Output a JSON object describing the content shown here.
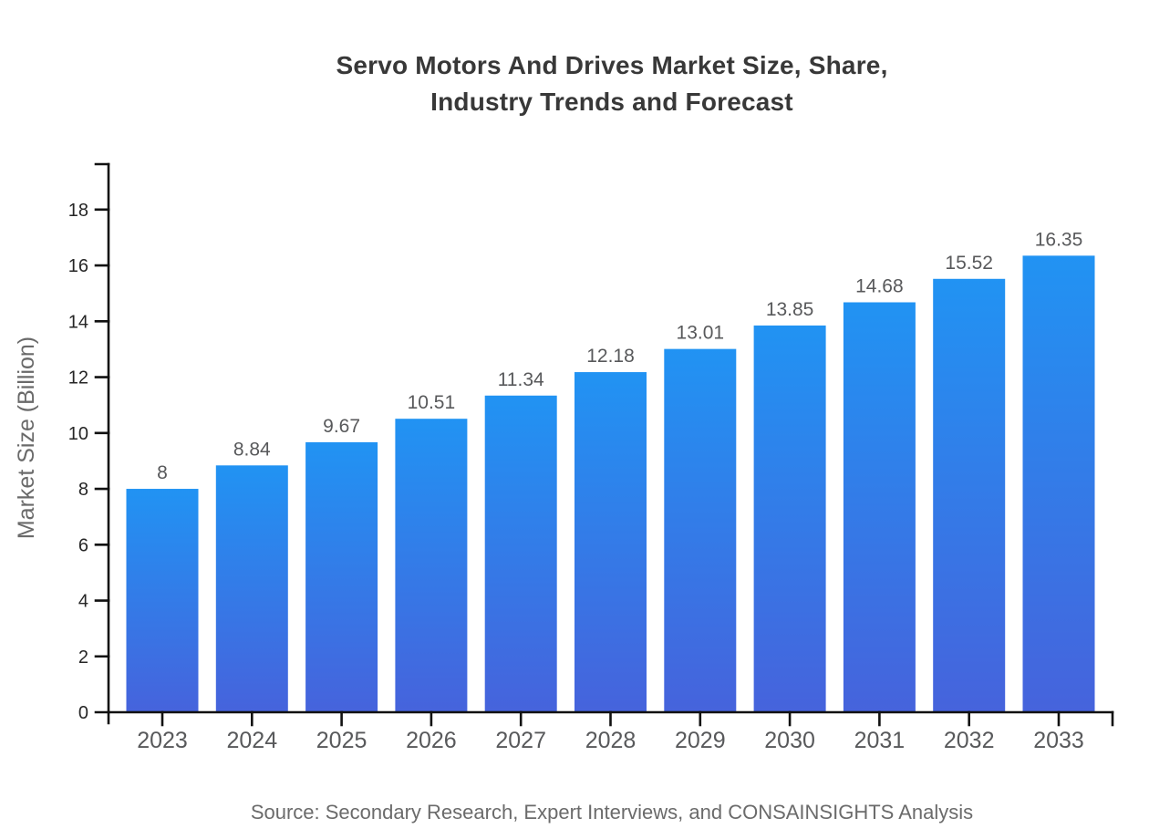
{
  "title": {
    "line1": "Servo Motors And Drives Market Size, Share,",
    "line2": "Industry Trends and Forecast"
  },
  "source_text": "Source: Secondary Research, Expert Interviews, and CONSAINSIGHTS Analysis",
  "chart_data": {
    "type": "bar",
    "title": "Servo Motors And Drives Market Size, Share, Industry Trends and Forecast",
    "categories": [
      "2023",
      "2024",
      "2025",
      "2026",
      "2027",
      "2028",
      "2029",
      "2030",
      "2031",
      "2032",
      "2033"
    ],
    "values": [
      8,
      8.84,
      9.67,
      10.51,
      11.34,
      12.18,
      13.01,
      13.85,
      14.68,
      15.52,
      16.35
    ],
    "value_labels": [
      "8",
      "8.84",
      "9.67",
      "10.51",
      "11.34",
      "12.18",
      "13.01",
      "13.85",
      "14.68",
      "15.52",
      "16.35"
    ],
    "xlabel": "",
    "ylabel": "Market Size (Billion)",
    "yticks": [
      0,
      2,
      4,
      6,
      8,
      10,
      12,
      14,
      16,
      18
    ],
    "ylim": [
      0,
      19.6
    ],
    "grid": false,
    "legend": "none",
    "colors": {
      "bar_gradient_top": "#2193f3",
      "bar_gradient_bottom": "#4663dc",
      "axis": "#111111",
      "ytick_label": "#262626",
      "xtick_label": "#58595b",
      "value_label": "#58595b",
      "ylabel_color": "#6a6a6a",
      "title_color": "#383838",
      "source_color": "#6b6b6b",
      "background": "#ffffff"
    }
  }
}
